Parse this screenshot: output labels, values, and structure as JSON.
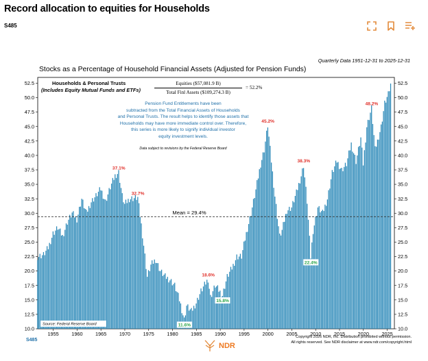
{
  "page": {
    "title": "Record allocation to equities for Households",
    "chart_code": "S485",
    "footer_code": "S485"
  },
  "toolbar": {
    "expand_icon": "expand-icon",
    "bookmark_icon": "bookmark-icon",
    "add_to_list_icon": "playlist-add-icon"
  },
  "colors": {
    "bar": "#2a88b8",
    "accent": "#e38a3a",
    "note": "#1e6fa8",
    "peak": "#e0302a",
    "trough": "#2ba54a"
  },
  "chart_data": {
    "type": "bar",
    "title": "Stocks as a Percentage of Household Financial Assets (Adjusted for Pension Funds)",
    "period": "Quarterly Data 1951-12-31 to 2025-12-31",
    "legend_line1": "Households & Personal Trusts",
    "legend_line2": "(Includes Equity Mutual Funds and ETFs)",
    "formula_numerator": "Equities ($57,081.9 B)",
    "formula_denominator": "Total Finl Assets ($109,274.3 B)",
    "formula_result": "= 52.2%",
    "note_lines": [
      "Pension Fund Entitlements have been",
      "subtracted from the Total Financial Assets of Households",
      "and Personal Trusts. The result helps to identify those assets that",
      "Households may have more immediate control over. Therefore,",
      "this series is more likely to signify individual investor",
      "equity investment levels."
    ],
    "revision_note": "Data subject to revisions by the Federal Reserve Board",
    "source": "Source: Federal Reserve Board",
    "ylim": [
      10,
      53.5
    ],
    "xlim": [
      1951.75,
      2026.5
    ],
    "y_ticks": [
      "10.0",
      "12.5",
      "15.0",
      "17.5",
      "20.0",
      "22.5",
      "25.0",
      "27.5",
      "30.0",
      "32.5",
      "35.0",
      "37.5",
      "40.0",
      "42.5",
      "45.0",
      "47.5",
      "50.0",
      "52.5"
    ],
    "x_ticks": [
      "1955",
      "1960",
      "1965",
      "1970",
      "1975",
      "1980",
      "1985",
      "1990",
      "1995",
      "2000",
      "2005",
      "2010",
      "2015",
      "2020",
      "2025"
    ],
    "mean": {
      "value": 29.4,
      "label": "Mean = 29.4%"
    },
    "annotations": [
      {
        "label": "37.1%",
        "x": 1968.75,
        "y": 37.1,
        "kind": "peak"
      },
      {
        "label": "32.7%",
        "x": 1972.75,
        "y": 32.7,
        "kind": "peak"
      },
      {
        "label": "18.6%",
        "x": 1987.5,
        "y": 18.6,
        "kind": "peak"
      },
      {
        "label": "45.2%",
        "x": 2000.0,
        "y": 45.2,
        "kind": "peak"
      },
      {
        "label": "38.3%",
        "x": 2007.5,
        "y": 38.3,
        "kind": "peak"
      },
      {
        "label": "48.2%",
        "x": 2021.75,
        "y": 48.2,
        "kind": "peak"
      },
      {
        "label": "11.6%",
        "x": 1982.5,
        "y": 11.6,
        "kind": "trough"
      },
      {
        "label": "15.8%",
        "x": 1990.5,
        "y": 15.8,
        "kind": "trough"
      },
      {
        "label": "22.4%",
        "x": 2009.0,
        "y": 22.4,
        "kind": "trough"
      }
    ],
    "anchors": [
      [
        1951.75,
        22.5
      ],
      [
        1953,
        22.8
      ],
      [
        1954,
        24
      ],
      [
        1955,
        26.5
      ],
      [
        1956,
        27.5
      ],
      [
        1957,
        26
      ],
      [
        1958,
        28.5
      ],
      [
        1959,
        30
      ],
      [
        1960,
        29
      ],
      [
        1961,
        32.5
      ],
      [
        1962,
        30
      ],
      [
        1963,
        32
      ],
      [
        1964,
        33
      ],
      [
        1965,
        34.2
      ],
      [
        1966,
        32
      ],
      [
        1967,
        34.5
      ],
      [
        1968,
        36.5
      ],
      [
        1968.75,
        37.1
      ],
      [
        1969.5,
        33
      ],
      [
        1970,
        31.5
      ],
      [
        1971,
        32.5
      ],
      [
        1972.75,
        32.7
      ],
      [
        1973.5,
        28
      ],
      [
        1974,
        24.5
      ],
      [
        1974.75,
        19
      ],
      [
        1975.5,
        21
      ],
      [
        1976.5,
        22
      ],
      [
        1977.5,
        20
      ],
      [
        1978.5,
        19
      ],
      [
        1979.5,
        18.5
      ],
      [
        1980.5,
        17.5
      ],
      [
        1981.5,
        15
      ],
      [
        1982.5,
        11.6
      ],
      [
        1983,
        14
      ],
      [
        1984,
        13
      ],
      [
        1985,
        14.5
      ],
      [
        1986,
        16.5
      ],
      [
        1987.5,
        18.6
      ],
      [
        1988,
        15.5
      ],
      [
        1989,
        17.5
      ],
      [
        1990.5,
        15.8
      ],
      [
        1991.5,
        19
      ],
      [
        1992.5,
        20.5
      ],
      [
        1993.5,
        22.5
      ],
      [
        1994.5,
        22.5
      ],
      [
        1995.5,
        26.5
      ],
      [
        1996.5,
        30
      ],
      [
        1997.5,
        34
      ],
      [
        1998.5,
        38.5
      ],
      [
        1999.25,
        41
      ],
      [
        2000,
        45.2
      ],
      [
        2000.75,
        39
      ],
      [
        2001.5,
        33
      ],
      [
        2002.5,
        26
      ],
      [
        2003,
        27
      ],
      [
        2004,
        30.5
      ],
      [
        2005,
        31
      ],
      [
        2006,
        33.5
      ],
      [
        2007,
        36.5
      ],
      [
        2007.5,
        38.3
      ],
      [
        2008.25,
        32
      ],
      [
        2008.75,
        25.5
      ],
      [
        2009,
        22.4
      ],
      [
        2009.5,
        27
      ],
      [
        2010.5,
        31
      ],
      [
        2011.5,
        30
      ],
      [
        2012.5,
        32.5
      ],
      [
        2013.5,
        37
      ],
      [
        2014.5,
        39
      ],
      [
        2015.5,
        37.5
      ],
      [
        2016.5,
        38.5
      ],
      [
        2017.5,
        42
      ],
      [
        2018.5,
        39
      ],
      [
        2019.5,
        43
      ],
      [
        2020,
        38.5
      ],
      [
        2020.75,
        45
      ],
      [
        2021.75,
        48.2
      ],
      [
        2022.5,
        41
      ],
      [
        2023,
        42.5
      ],
      [
        2023.75,
        45
      ],
      [
        2024.5,
        49
      ],
      [
        2025.25,
        50.5
      ],
      [
        2025.75,
        52.2
      ]
    ]
  },
  "footer": {
    "copyright_line1": "Copyright 2026 NDR, Inc. Distribution prohibited without permission.",
    "copyright_line2": "All rights reserved. See NDR disclaimer at www.ndr.com/copyright.html",
    "logo_text": "NDR"
  }
}
